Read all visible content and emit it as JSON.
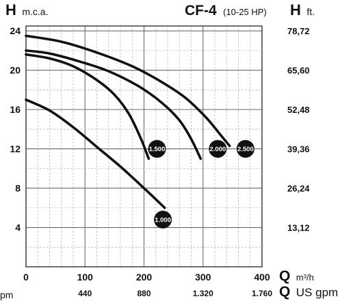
{
  "chart_data": {
    "type": "line",
    "title": "CF-4",
    "subtitle": "(10-25 HP)",
    "y_left_label": {
      "letter": "H",
      "unit": "m.c.a."
    },
    "y_right_label": {
      "letter": "H",
      "unit": "ft."
    },
    "x_top_label": {
      "letter": "Q",
      "unit": "m³/h"
    },
    "x_bottom_label": {
      "letter": "Q",
      "unit": "US gpm"
    },
    "x_tick_labels": [
      "0",
      "100",
      "200",
      "300",
      "400"
    ],
    "x_tick_values": [
      0,
      100,
      200,
      300,
      400
    ],
    "x_secondary_tick_labels": [
      "440",
      "880",
      "1.320",
      "1.760"
    ],
    "x_secondary_tick_values": [
      100,
      200,
      300,
      400
    ],
    "y_tick_labels": [
      "4",
      "8",
      "12",
      "16",
      "20",
      "24"
    ],
    "y_tick_values": [
      4,
      8,
      12,
      16,
      20,
      24
    ],
    "y_right_tick_labels": [
      "13,12",
      "26,24",
      "39,36",
      "52,48",
      "65,60",
      "78,72"
    ],
    "y_right_tick_values": [
      4,
      8,
      12,
      16,
      20,
      24
    ],
    "left_edge_fragment": "pm",
    "xlim": [
      0,
      400
    ],
    "ylim": [
      0,
      24.5
    ],
    "grid": true,
    "series": [
      {
        "name": "1.000",
        "points": [
          [
            0,
            17.0
          ],
          [
            40,
            15.9
          ],
          [
            80,
            14.2
          ],
          [
            120,
            12.2
          ],
          [
            160,
            10.2
          ],
          [
            200,
            8.0
          ],
          [
            235,
            6.0
          ]
        ],
        "badge_at": [
          232,
          4.8
        ]
      },
      {
        "name": "1.500",
        "points": [
          [
            0,
            21.6
          ],
          [
            40,
            21.2
          ],
          [
            80,
            20.4
          ],
          [
            120,
            19.0
          ],
          [
            150,
            17.5
          ],
          [
            175,
            15.5
          ],
          [
            195,
            13.0
          ],
          [
            208,
            11.0
          ]
        ],
        "badge_at": [
          222,
          12.0
        ]
      },
      {
        "name": "2.000",
        "points": [
          [
            0,
            22.0
          ],
          [
            40,
            21.7
          ],
          [
            90,
            20.9
          ],
          [
            140,
            19.9
          ],
          [
            190,
            18.4
          ],
          [
            230,
            16.7
          ],
          [
            260,
            14.9
          ],
          [
            280,
            13.0
          ],
          [
            296,
            11.0
          ]
        ],
        "badge_at": [
          325,
          12.0
        ]
      },
      {
        "name": "2.500",
        "points": [
          [
            0,
            23.5
          ],
          [
            60,
            22.9
          ],
          [
            120,
            21.8
          ],
          [
            180,
            20.4
          ],
          [
            230,
            18.8
          ],
          [
            270,
            17.2
          ],
          [
            305,
            15.2
          ],
          [
            330,
            13.4
          ],
          [
            345,
            12.3
          ]
        ],
        "badge_at": [
          372,
          12.0
        ]
      }
    ]
  }
}
